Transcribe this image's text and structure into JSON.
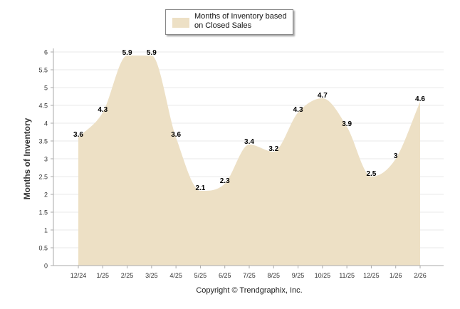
{
  "chart_data": {
    "type": "area",
    "title": "",
    "xlabel": "",
    "ylabel": "Months of Inventory",
    "categories": [
      "12/24",
      "1/25",
      "2/25",
      "3/25",
      "4/25",
      "5/25",
      "6/25",
      "7/25",
      "8/25",
      "9/25",
      "10/25",
      "11/25",
      "12/25",
      "1/26",
      "2/26"
    ],
    "series": [
      {
        "name": "Months of Inventory based on Closed Sales",
        "values": [
          3.6,
          4.3,
          5.9,
          5.9,
          3.6,
          2.1,
          2.3,
          3.4,
          3.2,
          4.3,
          4.7,
          3.9,
          2.5,
          3,
          4.6
        ],
        "labels": [
          "3.6",
          "4.3",
          "5.9",
          "5.9",
          "3.6",
          "2.1",
          "2.3",
          "3.4",
          "3.2",
          "4.3",
          "4.7",
          "3.9",
          "2.5",
          "3",
          "4.6"
        ]
      }
    ],
    "ylim": [
      0,
      6
    ],
    "yticks": [
      "0",
      "0.5",
      "1",
      "1.5",
      "2",
      "2.5",
      "3",
      "3.5",
      "4",
      "4.5",
      "5",
      "5.5",
      "6"
    ],
    "grid": true,
    "legend": "top-center",
    "fill_color": "#ede0c5",
    "grid_color": "#e8e8e8",
    "axis_color": "#aaaaaa"
  },
  "legend": {
    "label": "Months of Inventory based on Closed Sales"
  },
  "footer": {
    "copyright": "Copyright © Trendgraphix, Inc."
  }
}
